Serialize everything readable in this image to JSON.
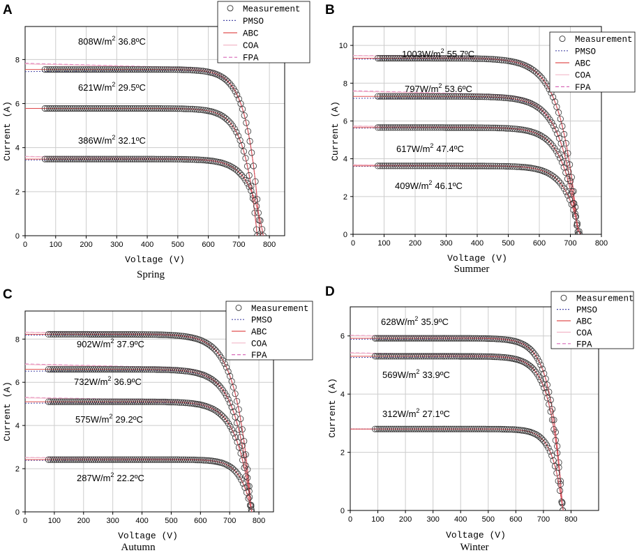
{
  "figure": {
    "panels": [
      {
        "letter": "A",
        "season": "Spring"
      },
      {
        "letter": "B",
        "season": "Summer"
      },
      {
        "letter": "C",
        "season": "Autumn"
      },
      {
        "letter": "D",
        "season": "Winter"
      }
    ],
    "legend": [
      "Measurement",
      "PMSO",
      "ABC",
      "COA",
      "FPA"
    ],
    "colors": {
      "measurement": "#333333",
      "pmso": "#4a4aa8",
      "abc": "#e05050",
      "coa": "#f2b8c8",
      "fpa": "#d86ab8",
      "grid": "#cccccc"
    }
  },
  "chart_data": [
    {
      "type": "scatter",
      "panel": "A",
      "title": "Spring",
      "xlabel": "Voltage (V)",
      "ylabel": "Current (A)",
      "xlim": [
        0,
        850
      ],
      "ylim": [
        0,
        9.5
      ],
      "xticks": [
        "0",
        "100",
        "200",
        "300",
        "400",
        "500",
        "600",
        "700",
        "800"
      ],
      "yticks": [
        "0",
        "2",
        "4",
        "6",
        "8"
      ],
      "series": [
        {
          "label": "808W/m² 36.8ºC",
          "irr": "808W/m",
          "temp": "36.8ºC",
          "isc": 7.55,
          "vknee": 600,
          "voc": 770,
          "vmin": 65,
          "fit_offset": 0.28
        },
        {
          "label": "621W/m² 29.5ºC",
          "irr": "621W/m",
          "temp": "29.5ºC",
          "isc": 5.78,
          "vknee": 590,
          "voc": 760,
          "vmin": 65,
          "fit_offset": 0.0
        },
        {
          "label": "386W/m² 32.1ºC",
          "irr": "386W/m",
          "temp": "32.1ºC",
          "isc": 3.48,
          "vknee": 590,
          "voc": 780,
          "vmin": 65,
          "fit_offset": 0.12
        }
      ]
    },
    {
      "type": "scatter",
      "panel": "B",
      "title": "Summer",
      "xlabel": "Voltage (V)",
      "ylabel": "Current (A)",
      "xlim": [
        0,
        800
      ],
      "ylim": [
        0,
        11
      ],
      "xticks": [
        "0",
        "100",
        "200",
        "300",
        "400",
        "500",
        "600",
        "700",
        "800"
      ],
      "yticks": [
        "0",
        "2",
        "4",
        "6",
        "8",
        "10"
      ],
      "series": [
        {
          "label": "1003W/m² 55.7ºC",
          "irr": "1003W/m",
          "temp": "55.7ºC",
          "isc": 9.32,
          "vknee": 500,
          "voc": 725,
          "vmin": 80,
          "fit_offset": 0.15
        },
        {
          "label": "797W/m² 53.6ºC",
          "irr": "797W/m",
          "temp": "53.6ºC",
          "isc": 7.3,
          "vknee": 510,
          "voc": 725,
          "vmin": 80,
          "fit_offset": 0.3
        },
        {
          "label": "617W/m² 47.4ºC",
          "irr": "617W/m",
          "temp": "47.4ºC",
          "isc": 5.65,
          "vknee": 530,
          "voc": 725,
          "vmin": 80,
          "fit_offset": 0.08
        },
        {
          "label": "409W/m² 46.1ºC",
          "irr": "409W/m",
          "temp": "46.1ºC",
          "isc": 3.62,
          "vknee": 540,
          "voc": 730,
          "vmin": 80,
          "fit_offset": 0.06
        }
      ]
    },
    {
      "type": "scatter",
      "panel": "C",
      "title": "Autumn",
      "xlabel": "Voltage (V)",
      "ylabel": "Current (A)",
      "xlim": [
        0,
        850
      ],
      "ylim": [
        0,
        9.3
      ],
      "xticks": [
        "0",
        "100",
        "200",
        "300",
        "400",
        "500",
        "600",
        "700",
        "800"
      ],
      "yticks": [
        "0",
        "2",
        "4",
        "6",
        "8"
      ],
      "series": [
        {
          "label": "902W/m² 37.9ºC",
          "irr": "902W/m",
          "temp": "37.9ºC",
          "isc": 8.22,
          "vknee": 560,
          "voc": 775,
          "vmin": 80,
          "fit_offset": 0.1
        },
        {
          "label": "732W/m² 36.9ºC",
          "irr": "732W/m",
          "temp": "36.9ºC",
          "isc": 6.6,
          "vknee": 560,
          "voc": 775,
          "vmin": 80,
          "fit_offset": 0.25
        },
        {
          "label": "575W/m² 29.2ºC",
          "irr": "575W/m",
          "temp": "29.2ºC",
          "isc": 5.1,
          "vknee": 570,
          "voc": 775,
          "vmin": 80,
          "fit_offset": 0.2
        },
        {
          "label": "287W/m² 22.2ºC",
          "irr": "287W/m",
          "temp": "22.2ºC",
          "isc": 2.42,
          "vknee": 620,
          "voc": 775,
          "vmin": 80,
          "fit_offset": 0.1
        }
      ]
    },
    {
      "type": "scatter",
      "panel": "D",
      "title": "Winter",
      "xlabel": "Voltage (V)",
      "ylabel": "Current (A)",
      "xlim": [
        0,
        900
      ],
      "ylim": [
        0,
        7
      ],
      "xticks": [
        "0",
        "100",
        "200",
        "300",
        "400",
        "500",
        "600",
        "700",
        "800"
      ],
      "yticks": [
        "0",
        "2",
        "4",
        "6"
      ],
      "series": [
        {
          "label": "628W/m² 35.9ºC",
          "irr": "628W/m",
          "temp": "35.9ºC",
          "isc": 5.92,
          "vknee": 590,
          "voc": 770,
          "vmin": 90,
          "fit_offset": 0.1
        },
        {
          "label": "569W/m² 33.9ºC",
          "irr": "569W/m",
          "temp": "33.9ºC",
          "isc": 5.3,
          "vknee": 590,
          "voc": 770,
          "vmin": 90,
          "fit_offset": 0.12
        },
        {
          "label": "312W/m² 27.1ºC",
          "irr": "312W/m",
          "temp": "27.1ºC",
          "isc": 2.8,
          "vknee": 620,
          "voc": 770,
          "vmin": 90,
          "fit_offset": 0.0
        }
      ]
    }
  ]
}
